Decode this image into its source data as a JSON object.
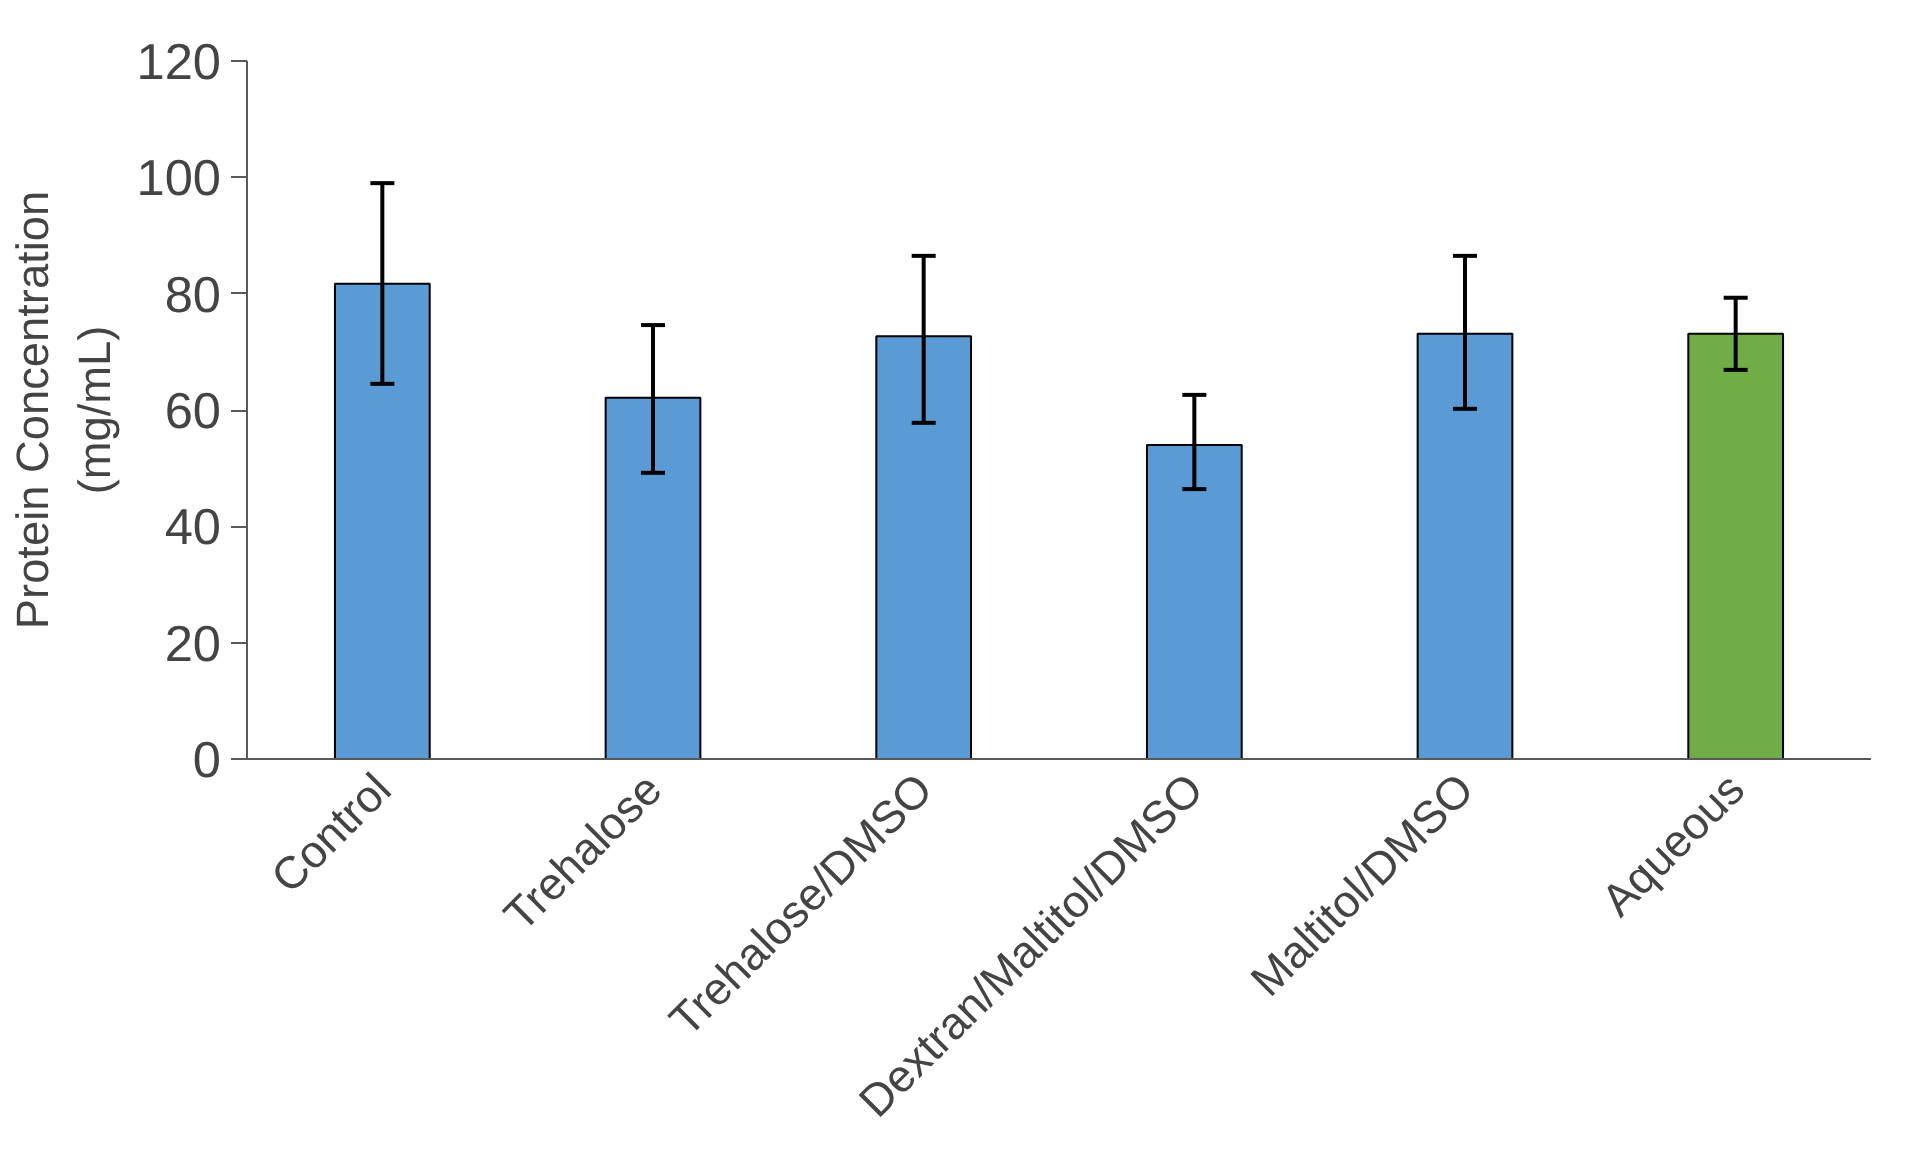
{
  "chart_data": {
    "type": "bar",
    "ylabel": "Protein Concentration\n(mg/mL)",
    "categories": [
      "Control",
      "Trehalose",
      "Trehalose/DMSO",
      "Dextran/Maltitol/DMSO",
      "Maltitol/DMSO",
      "Aqueous"
    ],
    "values": [
      81.7,
      62.1,
      72.7,
      54,
      73.1,
      73.1
    ],
    "colors": [
      "#5b9bd5",
      "#5b9bd5",
      "#5b9bd5",
      "#5b9bd5",
      "#5b9bd5",
      "#70ad47"
    ],
    "errors": [
      [
        64.5,
        99
      ],
      [
        49.2,
        74.6
      ],
      [
        57.8,
        86.5
      ],
      [
        46.4,
        62.6
      ],
      [
        60.2,
        86.5
      ],
      [
        66.9,
        79.3
      ]
    ],
    "ylim": [
      0,
      120
    ],
    "yticks": [
      0,
      20,
      40,
      60,
      80,
      100,
      120
    ],
    "grid": false
  }
}
